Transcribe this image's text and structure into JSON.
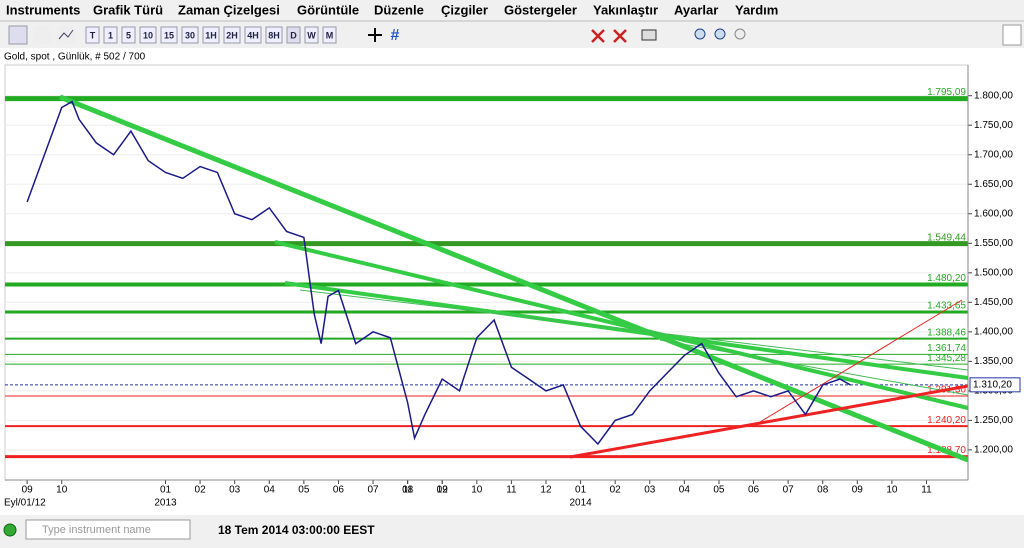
{
  "menu": [
    "Instruments",
    "Grafik Türü",
    "Zaman Çizelgesi",
    "Görüntüle",
    "Düzenle",
    "Çizgiler",
    "Göstergeler",
    "Yakınlaştır",
    "Ayarlar",
    "Yardım"
  ],
  "toolbar": {
    "timeframes": [
      "T",
      "1",
      "5",
      "10",
      "15",
      "30",
      "1H",
      "2H",
      "4H",
      "8H",
      "D",
      "W",
      "M"
    ]
  },
  "status": {
    "search_placeholder": "Type instrument name",
    "time": "18 Tem 2014 03:00:00 EEST"
  },
  "chart_data": {
    "type": "line",
    "title": "Gold, spot , Günlük, # 502 / 700",
    "x": [
      0,
      0.5,
      1,
      1.3,
      1.5,
      2,
      2.5,
      3,
      3.5,
      4,
      4.5,
      5,
      5.5,
      6,
      6.5,
      7,
      7.5,
      8,
      8.3,
      8.5,
      8.7,
      9,
      9.5,
      10,
      10.5,
      11,
      11.2,
      11.5,
      12,
      12.5,
      13,
      13.5,
      14,
      14.5,
      15,
      15.5,
      16,
      16.5,
      17,
      17.5,
      18,
      18.5,
      19,
      19.5,
      20,
      20.5,
      21,
      21.5,
      22,
      22.5,
      23,
      23.5,
      23.8
    ],
    "series": [
      {
        "color": "#1a1a8c",
        "values": [
          1620,
          1700,
          1780,
          1790,
          1760,
          1720,
          1700,
          1740,
          1690,
          1670,
          1660,
          1680,
          1670,
          1600,
          1590,
          1610,
          1570,
          1560,
          1430,
          1380,
          1460,
          1470,
          1380,
          1400,
          1390,
          1280,
          1220,
          1260,
          1320,
          1300,
          1390,
          1420,
          1340,
          1320,
          1300,
          1310,
          1240,
          1210,
          1250,
          1260,
          1300,
          1330,
          1360,
          1380,
          1330,
          1290,
          1300,
          1290,
          1300,
          1260,
          1310,
          1320,
          1310
        ]
      }
    ],
    "xlim": [
      -0.64,
      27.2
    ],
    "ylim": [
      1149,
      1852
    ],
    "xticks": [
      {
        "value": 0,
        "label": "09"
      },
      {
        "value": 1,
        "label": "10"
      },
      11,
      12,
      {
        "value": 4,
        "label": "01"
      },
      {
        "value": 5,
        "label": "02"
      },
      {
        "value": 6,
        "label": "03"
      },
      {
        "value": 7,
        "label": "04"
      },
      {
        "value": 8,
        "label": "05"
      },
      {
        "value": 9,
        "label": "06"
      },
      {
        "value": 10,
        "label": "07"
      },
      {
        "value": 11,
        "label": "08"
      },
      {
        "value": 12,
        "label": "09"
      },
      {
        "value": 13,
        "label": "10"
      },
      {
        "value": 14,
        "label": "11"
      },
      {
        "value": 15,
        "label": "12"
      },
      {
        "value": 16,
        "label": "01"
      },
      {
        "value": 17,
        "label": "02"
      },
      {
        "value": 18,
        "label": "03"
      },
      {
        "value": 19,
        "label": "04"
      },
      {
        "value": 20,
        "label": "05"
      },
      {
        "value": 21,
        "label": "06"
      },
      {
        "value": 22,
        "label": "07"
      },
      {
        "value": 23,
        "label": "08"
      },
      {
        "value": 24,
        "label": "09"
      },
      {
        "value": 25,
        "label": "10"
      },
      {
        "value": 26,
        "label": "11"
      }
    ],
    "year_labels": [
      {
        "value": 4,
        "label": "2013"
      },
      {
        "value": 16,
        "label": "2014"
      }
    ],
    "start_label": "Eyl/01/12",
    "yticks": [
      {
        "value": 1200,
        "label": "1.200,00"
      },
      {
        "value": 1250,
        "label": "1.250,00"
      },
      {
        "value": 1300,
        "label": "1.300,00"
      },
      {
        "value": 1350,
        "label": "1.350,00"
      },
      {
        "value": 1400,
        "label": "1.400,00"
      },
      {
        "value": 1450,
        "label": "1.450,00"
      },
      {
        "value": 1500,
        "label": "1.500,00"
      },
      {
        "value": 1550,
        "label": "1.550,00"
      },
      {
        "value": 1600,
        "label": "1.600,00"
      },
      {
        "value": 1650,
        "label": "1.650,00"
      },
      {
        "value": 1700,
        "label": "1.700,00"
      },
      {
        "value": 1750,
        "label": "1.750,00"
      },
      {
        "value": 1800,
        "label": "1.800,00"
      }
    ],
    "levels": [
      {
        "value": 1795.09,
        "label": "1.795,09",
        "color": "#22aa22",
        "width": 5
      },
      {
        "value": 1549.44,
        "label": "1.549,44",
        "color": "#339922",
        "width": 5
      },
      {
        "value": 1480.2,
        "label": "1.480,20",
        "color": "#22aa22",
        "width": 4
      },
      {
        "value": 1433.65,
        "label": "1.433,65",
        "color": "#22aa22",
        "width": 3
      },
      {
        "value": 1388.46,
        "label": "1.388,46",
        "color": "#22aa22",
        "width": 2
      },
      {
        "value": 1361.74,
        "label": "1.361,74",
        "color": "#22aa22",
        "width": 1
      },
      {
        "value": 1345.28,
        "label": "1.345,28",
        "color": "#22aa22",
        "width": 1
      },
      {
        "value": 1291.3,
        "label": "1.291,30",
        "color": "#ee2222",
        "width": 1
      },
      {
        "value": 1240.2,
        "label": "1.240,20",
        "color": "#ee2222",
        "width": 2
      },
      {
        "value": 1188.7,
        "label": "1.188,70",
        "color": "#ee2222",
        "width": 3
      }
    ],
    "current": {
      "value": 1310.2,
      "label": "1.310,20",
      "color": "#2233aa"
    }
  }
}
